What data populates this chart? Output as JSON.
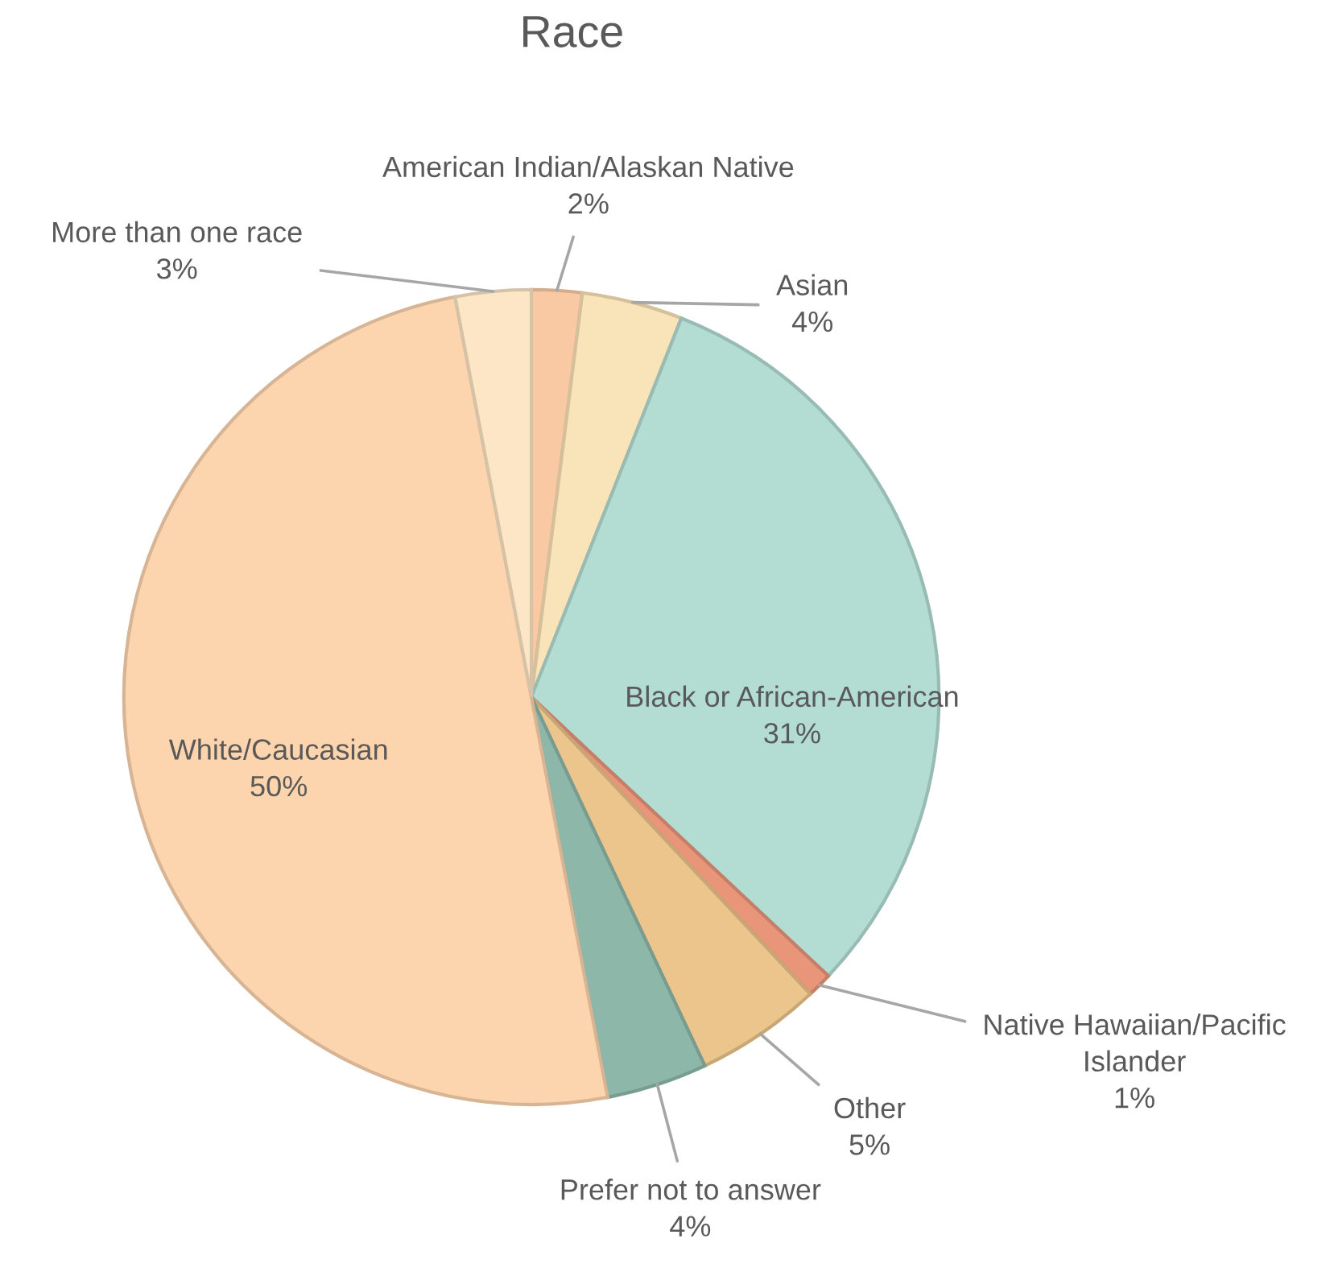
{
  "chart_data": {
    "type": "pie",
    "title": "Race",
    "categories": [
      "American Indian/Alaskan Native",
      "Asian",
      "Black or African-American",
      "Native Hawaiian/Pacific Islander",
      "Other",
      "Prefer not to answer",
      "White/Caucasian",
      "More than one race"
    ],
    "values": [
      2,
      4,
      31,
      1,
      5,
      4,
      50,
      3
    ],
    "value_labels": [
      "2%",
      "4%",
      "31%",
      "1%",
      "5%",
      "4%",
      "50%",
      "3%"
    ],
    "colors": [
      "#f9c9a3",
      "#f9e3b8",
      "#b3ddd3",
      "#e8957a",
      "#ebc58b",
      "#8db8a9",
      "#fcd4ae",
      "#fce6c5"
    ],
    "legend": false
  }
}
